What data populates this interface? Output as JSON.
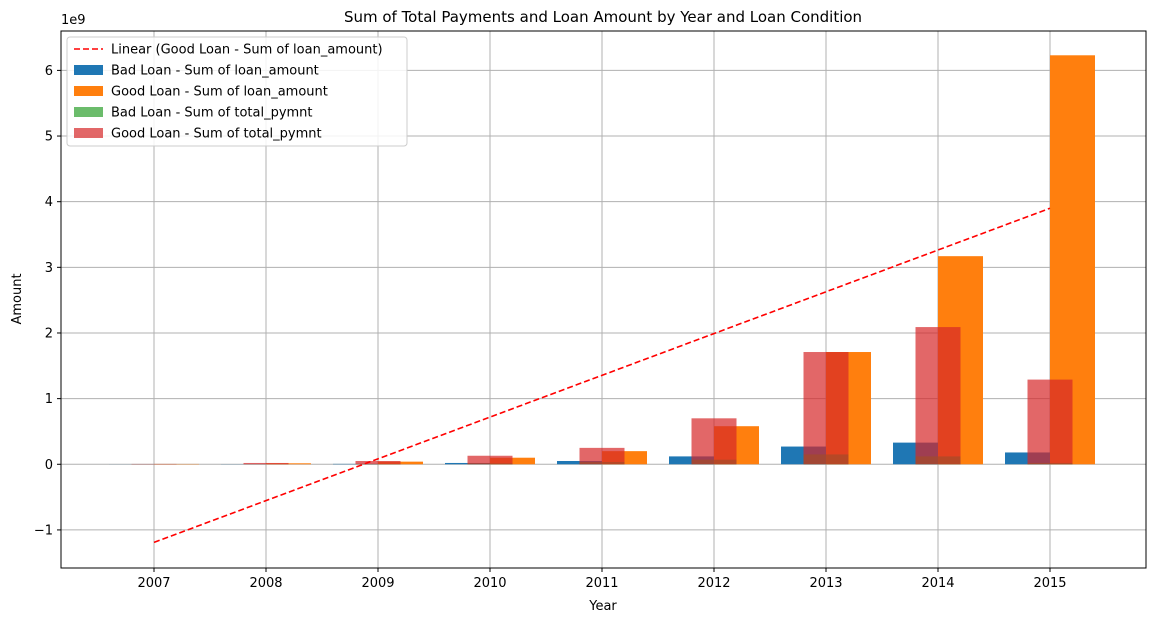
{
  "chart_data": {
    "type": "bar",
    "title": "Sum of Total Payments and Loan Amount by Year and Loan Condition",
    "xlabel": "Year",
    "ylabel": "Amount",
    "y_offset_label": "1e9",
    "categories": [
      "2007",
      "2008",
      "2009",
      "2010",
      "2011",
      "2012",
      "2013",
      "2014",
      "2015"
    ],
    "ylim": [
      -1.58,
      6.6
    ],
    "yticks": [
      -1,
      0,
      1,
      2,
      3,
      4,
      5,
      6
    ],
    "ytick_labels": [
      "−1",
      "0",
      "1",
      "2",
      "3",
      "4",
      "5",
      "6"
    ],
    "grid": true,
    "legend_position": "top-left",
    "series": [
      {
        "name": "Bad Loan - Sum of loan_amount",
        "kind": "bar",
        "color": "#1f77b4",
        "values": [
          0.001,
          0.002,
          0.006,
          0.02,
          0.05,
          0.12,
          0.27,
          0.33,
          0.18
        ]
      },
      {
        "name": "Good Loan - Sum of loan_amount",
        "kind": "bar",
        "color": "#ff7f0e",
        "values": [
          0.005,
          0.015,
          0.04,
          0.1,
          0.2,
          0.58,
          1.71,
          3.17,
          6.23
        ]
      },
      {
        "name": "Bad Loan - Sum of total_pymnt",
        "kind": "bar",
        "color": "#2ca02c",
        "values": [
          0.001,
          0.002,
          0.005,
          0.015,
          0.035,
          0.07,
          0.15,
          0.12,
          0.02
        ]
      },
      {
        "name": "Good Loan - Sum of total_pymnt",
        "kind": "bar",
        "color": "#d62728",
        "values": [
          0.005,
          0.02,
          0.05,
          0.13,
          0.25,
          0.7,
          1.71,
          2.09,
          1.29
        ]
      },
      {
        "name": "Linear (Good Loan - Sum of loan_amount)",
        "kind": "line",
        "color": "#ff0000",
        "x": [
          "2007",
          "2015"
        ],
        "values": [
          -1.19,
          3.9
        ]
      }
    ],
    "legend_order": [
      4,
      0,
      1,
      2,
      3
    ]
  }
}
